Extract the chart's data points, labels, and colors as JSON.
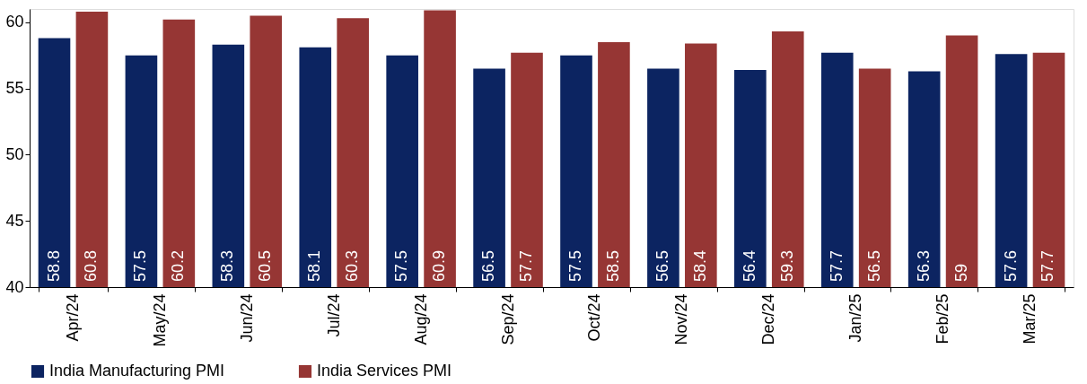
{
  "chart_data": {
    "type": "bar",
    "categories": [
      "Apr/24",
      "May/24",
      "Jun/24",
      "Jul/24",
      "Aug/24",
      "Sep/24",
      "Oct/24",
      "Nov/24",
      "Dec/24",
      "Jan/25",
      "Feb/25",
      "Mar/25"
    ],
    "series": [
      {
        "name": "India Manufacturing PMI",
        "color": "#0c2461",
        "values": [
          58.8,
          57.5,
          58.3,
          58.1,
          57.5,
          56.5,
          57.5,
          56.5,
          56.4,
          57.7,
          56.3,
          57.6
        ]
      },
      {
        "name": "India Services PMI",
        "color": "#963634",
        "values": [
          60.8,
          60.2,
          60.5,
          60.3,
          60.9,
          57.7,
          58.5,
          58.4,
          59.3,
          56.5,
          59,
          57.7
        ]
      }
    ],
    "ylim": [
      40,
      61
    ],
    "yticks": [
      40,
      45,
      50,
      55,
      60
    ],
    "grid": false,
    "legend": "bottom",
    "data_labels": true
  }
}
